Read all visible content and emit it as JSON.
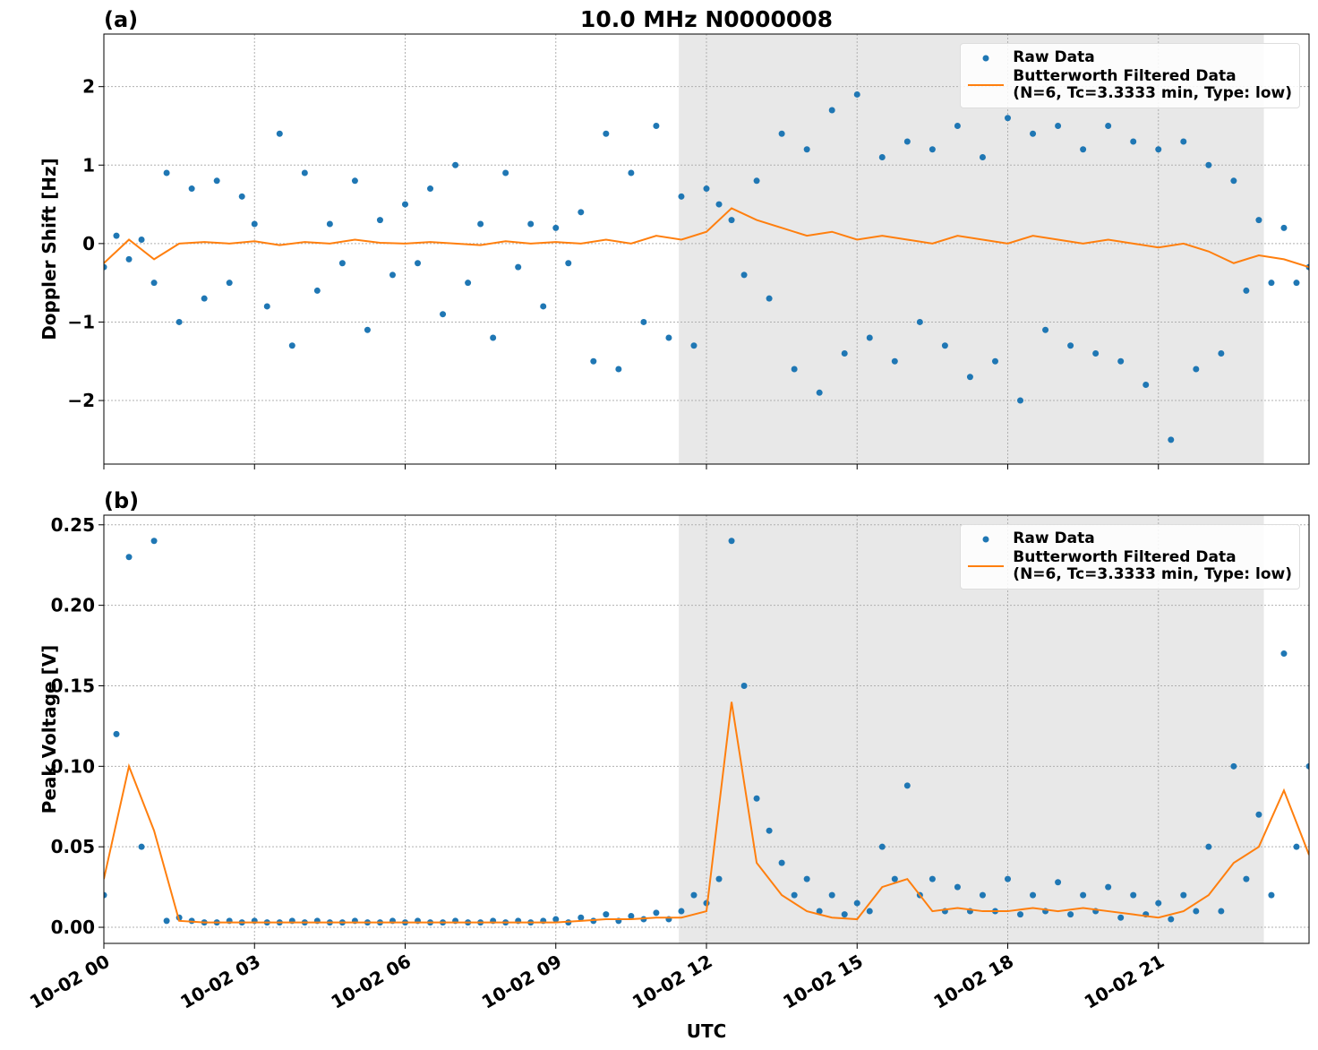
{
  "chart_data": [
    {
      "type": "scatter",
      "panel_label": "(a)",
      "title": "10.0 MHz N0000008",
      "ylabel": "Doppler Shift [Hz]",
      "xlim": [
        0,
        24
      ],
      "ylim": [
        -2.81,
        2.67
      ],
      "grid": true,
      "legend": "upper right",
      "shade": [
        11.45,
        23.1
      ],
      "xticks": [
        0,
        3,
        6,
        9,
        12,
        15,
        18,
        21
      ],
      "yticks": [
        {
          "value": -2,
          "label": "−2"
        },
        {
          "value": -1,
          "label": "−1"
        },
        0,
        1,
        2
      ],
      "series": [
        {
          "name": "Raw Data",
          "color": "#1f77b4",
          "type": "scatter",
          "x": [
            0,
            0.25,
            0.5,
            0.75,
            1,
            1.25,
            1.5,
            1.75,
            2,
            2.25,
            2.5,
            2.75,
            3,
            3.25,
            3.5,
            3.75,
            4,
            4.25,
            4.5,
            4.75,
            5,
            5.25,
            5.5,
            5.75,
            6,
            6.25,
            6.5,
            6.75,
            7,
            7.25,
            7.5,
            7.75,
            8,
            8.25,
            8.5,
            8.75,
            9,
            9.25,
            9.5,
            9.75,
            10,
            10.25,
            10.5,
            10.75,
            11,
            11.25,
            11.5,
            11.75,
            12,
            12.25,
            12.5,
            12.75,
            13,
            13.25,
            13.5,
            13.75,
            14,
            14.25,
            14.5,
            14.75,
            15,
            15.25,
            15.5,
            15.75,
            16,
            16.25,
            16.5,
            16.75,
            17,
            17.25,
            17.5,
            17.75,
            18,
            18.25,
            18.5,
            18.75,
            19,
            19.25,
            19.5,
            19.75,
            20,
            20.25,
            20.5,
            20.75,
            21,
            21.25,
            21.5,
            21.75,
            22,
            22.25,
            22.5,
            22.75,
            23,
            23.25,
            23.5,
            23.75,
            24
          ],
          "values": [
            -0.3,
            0.1,
            -0.2,
            0.05,
            -0.5,
            0.9,
            -1.0,
            0.7,
            -0.7,
            0.8,
            -0.5,
            0.6,
            0.25,
            -0.8,
            1.4,
            -1.3,
            0.9,
            -0.6,
            0.25,
            -0.25,
            0.8,
            -1.1,
            0.3,
            -0.4,
            0.5,
            -0.25,
            0.7,
            -0.9,
            1.0,
            -0.5,
            0.25,
            -1.2,
            0.9,
            -0.3,
            0.25,
            -0.8,
            0.2,
            -0.25,
            0.4,
            -1.5,
            1.4,
            -1.6,
            0.9,
            -1.0,
            1.5,
            -1.2,
            0.6,
            -1.3,
            0.7,
            0.5,
            0.3,
            -0.4,
            0.8,
            -0.7,
            1.4,
            -1.6,
            1.2,
            -1.9,
            1.7,
            -1.4,
            1.9,
            -1.2,
            1.1,
            -1.5,
            1.3,
            -1.0,
            1.2,
            -1.3,
            1.5,
            -1.7,
            1.1,
            -1.5,
            1.6,
            -2.0,
            1.4,
            -1.1,
            1.5,
            -1.3,
            1.2,
            -1.4,
            1.5,
            -1.5,
            1.3,
            -1.8,
            1.2,
            -2.5,
            1.3,
            -1.6,
            1.0,
            -1.4,
            0.8,
            -0.6,
            0.3,
            -0.5,
            0.2,
            -0.5,
            -0.3
          ]
        },
        {
          "name": "Butterworth Filtered Data\n(N=6, Tc=3.3333 min, Type: low)",
          "color": "#ff7f0e",
          "type": "line",
          "x": [
            0,
            0.5,
            1,
            1.5,
            2,
            2.5,
            3,
            3.5,
            4,
            4.5,
            5,
            5.5,
            6,
            6.5,
            7,
            7.5,
            8,
            8.5,
            9,
            9.5,
            10,
            10.5,
            11,
            11.5,
            12,
            12.5,
            13,
            13.5,
            14,
            14.5,
            15,
            15.5,
            16,
            16.5,
            17,
            17.5,
            18,
            18.5,
            19,
            19.5,
            20,
            20.5,
            21,
            21.5,
            22,
            22.5,
            23,
            23.5,
            24
          ],
          "values": [
            -0.25,
            0.05,
            -0.2,
            0.0,
            0.02,
            0.0,
            0.03,
            -0.02,
            0.02,
            0.0,
            0.05,
            0.01,
            0.0,
            0.02,
            0.0,
            -0.02,
            0.03,
            0.0,
            0.02,
            0.0,
            0.05,
            0.0,
            0.1,
            0.05,
            0.15,
            0.45,
            0.3,
            0.2,
            0.1,
            0.15,
            0.05,
            0.1,
            0.05,
            0.0,
            0.1,
            0.05,
            0.0,
            0.1,
            0.05,
            0.0,
            0.05,
            0.0,
            -0.05,
            0.0,
            -0.1,
            -0.25,
            -0.15,
            -0.2,
            -0.3
          ]
        }
      ]
    },
    {
      "type": "scatter",
      "panel_label": "(b)",
      "ylabel": "Peak Voltage [V]",
      "xlabel": "UTC",
      "xlim": [
        0,
        24
      ],
      "ylim": [
        -0.01,
        0.256
      ],
      "grid": true,
      "legend": "upper right",
      "shade": [
        11.45,
        23.1
      ],
      "xticks": [
        {
          "value": 0,
          "label": "10-02 00"
        },
        {
          "value": 3,
          "label": "10-02 03"
        },
        {
          "value": 6,
          "label": "10-02 06"
        },
        {
          "value": 9,
          "label": "10-02 09"
        },
        {
          "value": 12,
          "label": "10-02 12"
        },
        {
          "value": 15,
          "label": "10-02 15"
        },
        {
          "value": 18,
          "label": "10-02 18"
        },
        {
          "value": 21,
          "label": "10-02 21"
        }
      ],
      "yticks": [
        {
          "value": 0,
          "label": "0.00"
        },
        0.05,
        {
          "value": 0.1,
          "label": "0.10"
        },
        0.15,
        {
          "value": 0.2,
          "label": "0.20"
        },
        0.25
      ],
      "series": [
        {
          "name": "Raw Data",
          "color": "#1f77b4",
          "type": "scatter",
          "x": [
            0,
            0.25,
            0.5,
            0.75,
            1,
            1.25,
            1.5,
            1.75,
            2,
            2.25,
            2.5,
            2.75,
            3,
            3.25,
            3.5,
            3.75,
            4,
            4.25,
            4.5,
            4.75,
            5,
            5.25,
            5.5,
            5.75,
            6,
            6.25,
            6.5,
            6.75,
            7,
            7.25,
            7.5,
            7.75,
            8,
            8.25,
            8.5,
            8.75,
            9,
            9.25,
            9.5,
            9.75,
            10,
            10.25,
            10.5,
            10.75,
            11,
            11.25,
            11.5,
            11.75,
            12,
            12.25,
            12.5,
            12.75,
            13,
            13.25,
            13.5,
            13.75,
            14,
            14.25,
            14.5,
            14.75,
            15,
            15.25,
            15.5,
            15.75,
            16,
            16.25,
            16.5,
            16.75,
            17,
            17.25,
            17.5,
            17.75,
            18,
            18.25,
            18.5,
            18.75,
            19,
            19.25,
            19.5,
            19.75,
            20,
            20.25,
            20.5,
            20.75,
            21,
            21.25,
            21.5,
            21.75,
            22,
            22.25,
            22.5,
            22.75,
            23,
            23.25,
            23.5,
            23.75,
            24
          ],
          "values": [
            0.02,
            0.12,
            0.23,
            0.05,
            0.24,
            0.004,
            0.006,
            0.004,
            0.003,
            0.003,
            0.004,
            0.003,
            0.004,
            0.003,
            0.003,
            0.004,
            0.003,
            0.004,
            0.003,
            0.003,
            0.004,
            0.003,
            0.003,
            0.004,
            0.003,
            0.004,
            0.003,
            0.003,
            0.004,
            0.003,
            0.003,
            0.004,
            0.003,
            0.004,
            0.003,
            0.004,
            0.005,
            0.003,
            0.006,
            0.004,
            0.008,
            0.004,
            0.007,
            0.005,
            0.009,
            0.005,
            0.01,
            0.02,
            0.015,
            0.03,
            0.24,
            0.15,
            0.08,
            0.06,
            0.04,
            0.02,
            0.03,
            0.01,
            0.02,
            0.008,
            0.015,
            0.01,
            0.05,
            0.03,
            0.088,
            0.02,
            0.03,
            0.01,
            0.025,
            0.01,
            0.02,
            0.01,
            0.03,
            0.008,
            0.02,
            0.01,
            0.028,
            0.008,
            0.02,
            0.01,
            0.025,
            0.006,
            0.02,
            0.008,
            0.015,
            0.005,
            0.02,
            0.01,
            0.05,
            0.01,
            0.1,
            0.03,
            0.07,
            0.02,
            0.17,
            0.05,
            0.1
          ]
        },
        {
          "name": "Butterworth Filtered Data\n(N=6, Tc=3.3333 min, Type: low)",
          "color": "#ff7f0e",
          "type": "line",
          "x": [
            0,
            0.5,
            1,
            1.5,
            2,
            2.5,
            3,
            3.5,
            4,
            4.5,
            5,
            5.5,
            6,
            6.5,
            7,
            7.5,
            8,
            8.5,
            9,
            9.5,
            10,
            10.5,
            11,
            11.5,
            12,
            12.5,
            13,
            13.5,
            14,
            14.5,
            15,
            15.5,
            16,
            16.5,
            17,
            17.5,
            18,
            18.5,
            19,
            19.5,
            20,
            20.5,
            21,
            21.5,
            22,
            22.5,
            23,
            23.5,
            24
          ],
          "values": [
            0.03,
            0.1,
            0.06,
            0.004,
            0.003,
            0.003,
            0.003,
            0.003,
            0.003,
            0.003,
            0.003,
            0.003,
            0.003,
            0.003,
            0.003,
            0.003,
            0.003,
            0.003,
            0.003,
            0.004,
            0.005,
            0.005,
            0.006,
            0.006,
            0.01,
            0.14,
            0.04,
            0.02,
            0.01,
            0.006,
            0.005,
            0.025,
            0.03,
            0.01,
            0.012,
            0.01,
            0.01,
            0.012,
            0.01,
            0.012,
            0.01,
            0.008,
            0.006,
            0.01,
            0.02,
            0.04,
            0.05,
            0.085,
            0.045
          ]
        }
      ]
    }
  ]
}
